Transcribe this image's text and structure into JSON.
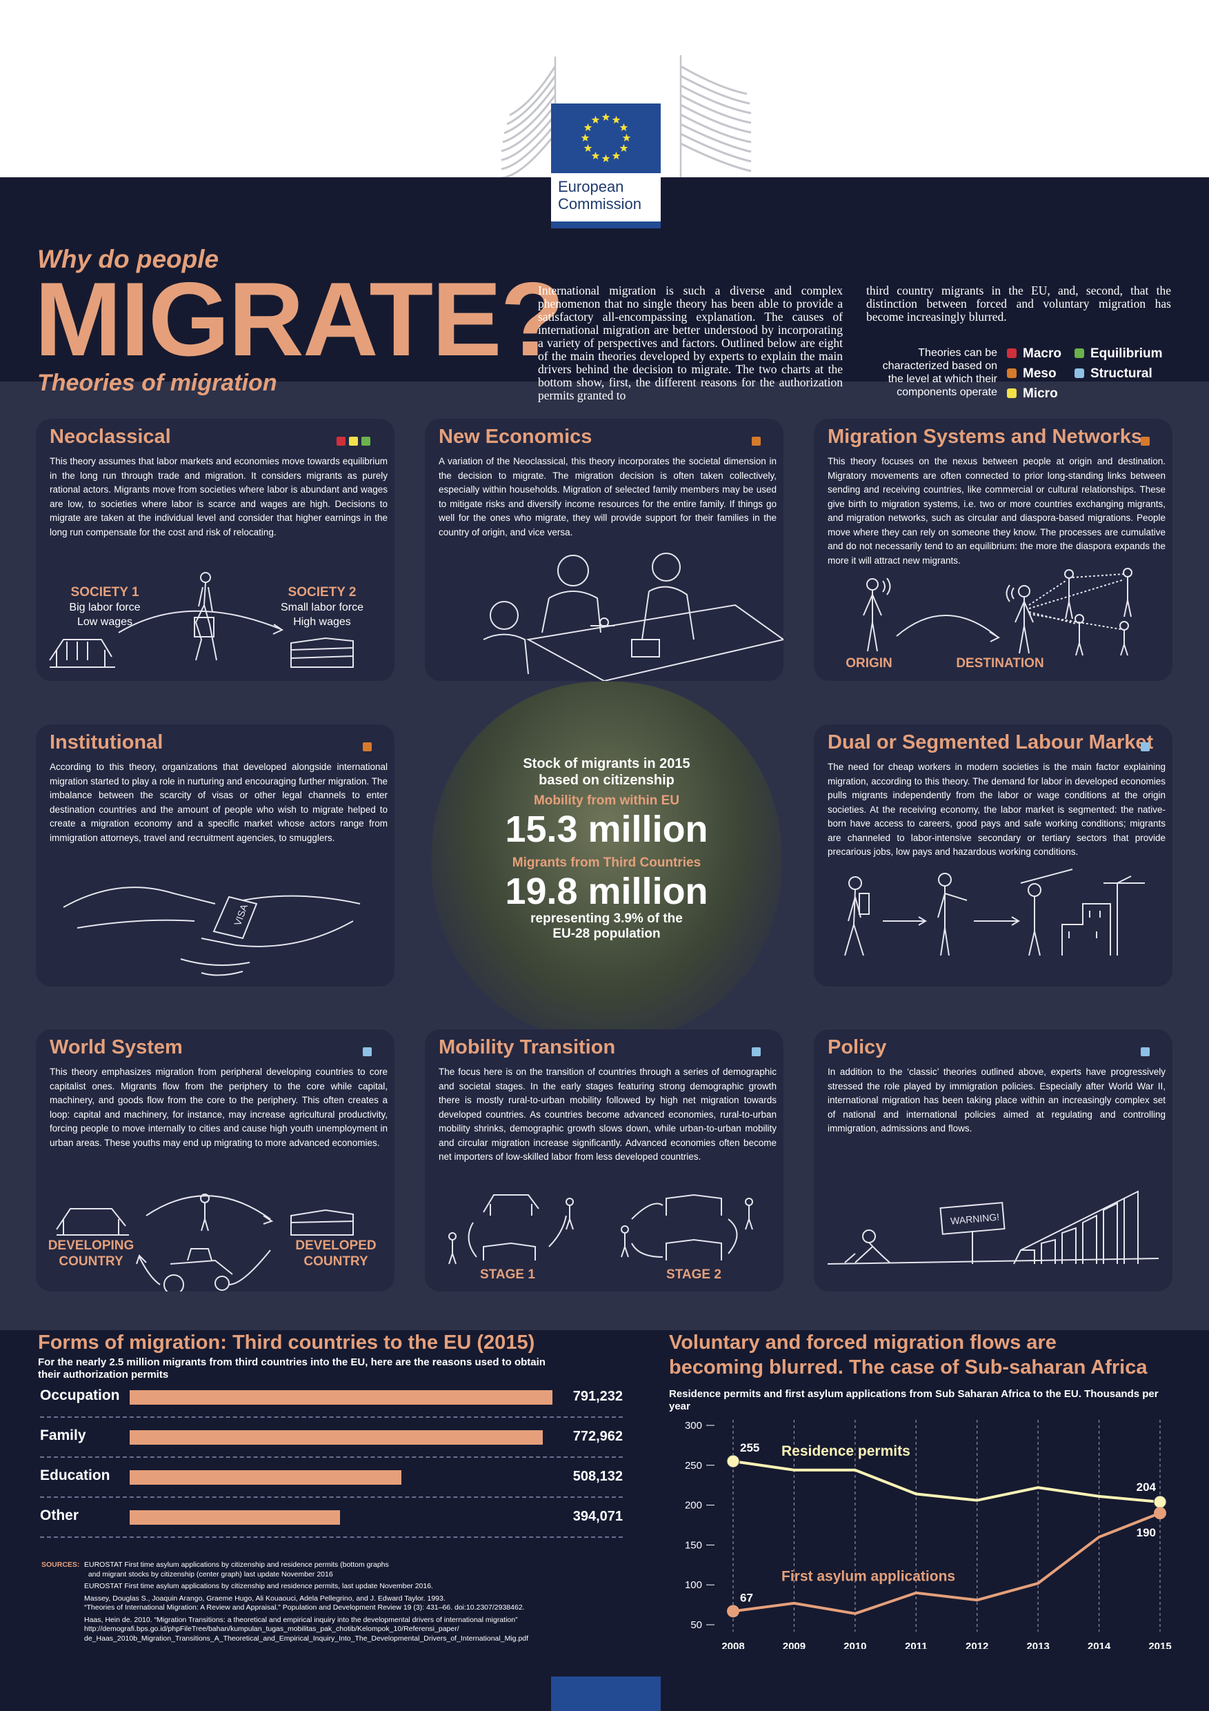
{
  "colors": {
    "accent": "#e5a07b",
    "background": "#161a30",
    "panel": "#242841",
    "macro": "#d0303a",
    "meso": "#d67a2c",
    "micro": "#f2e14a",
    "equilibrium": "#6cb24a",
    "structural": "#8fc1e6",
    "residence": "#fbf4b6"
  },
  "logo": {
    "line1": "European",
    "line2": "Commission"
  },
  "header": {
    "pre": "Why do people",
    "big": "MIGRATE?",
    "sub": "Theories of migration"
  },
  "intro": {
    "col1": "International migration is such a diverse and complex phenomenon that no single theory has been able to provide a satisfactory all-encompassing explanation. The causes of international migration are better understood by incorporating a variety of perspectives and factors. Outlined below are eight of the main theories developed by experts to explain the main drivers behind the decision to migrate. The two charts at the bottom show, first, the different reasons for the authorization permits granted to",
    "col2": "third country migrants in the EU, and, second, that the distinction between forced and voluntary migration has become increasingly blurred."
  },
  "legend": {
    "label": "Theories can be characterized based on the level at which their components operate",
    "items": [
      "Macro",
      "Meso",
      "Micro",
      "Equilibrium",
      "Structural"
    ]
  },
  "cards": {
    "neoclassical": {
      "title": "Neoclassical",
      "text": "This theory assumes that labor markets and economies move towards equilibrium in the long run through trade and migration. It considers migrants as purely rational actors. Migrants move from societies where labor is abundant and wages are low, to societies where labor is scarce and wages are high. Decisions to migrate are taken at the individual level and consider that higher earnings in the long run compensate for the cost and risk of relocating.",
      "s1": "SOCIETY 1",
      "s1a": "Big labor force",
      "s1b": "Low wages",
      "s2": "SOCIETY 2",
      "s2a": "Small labor force",
      "s2b": "High wages"
    },
    "neweconomics": {
      "title": "New Economics",
      "text": "A variation of the Neoclassical, this theory incorporates the societal dimension in the decision to migrate. The migration decision is often taken collectively, especially within households. Migration of selected family members may be used to mitigate risks and diversify income resources for the entire family. If things go well for the ones who migrate, they will provide support for their families in the country of origin, and vice versa."
    },
    "systems": {
      "title": "Migration Systems and Networks",
      "text": "This theory focuses on the nexus between people at origin and destination. Migratory movements are often connected to prior long-standing links between sending and receiving countries, like commercial or cultural relationships. These give birth to migration systems, i.e. two or more countries exchanging migrants, and migration networks, such as circular and diaspora-based migrations. People move where they can rely on someone they know. The processes are cumulative and do not necessarily tend to an equilibrium: the more the diaspora expands the more it will attract new migrants.",
      "origin": "ORIGIN",
      "dest": "DESTINATION"
    },
    "institutional": {
      "title": "Institutional",
      "text": "According to this theory, organizations that developed alongside international migration started to play a role in nurturing and encouraging further migration. The imbalance between the scarcity of visas or other legal channels to enter destination countries and the amount of people who wish to migrate helped to create a migration economy and a specific market whose actors range from immigration attorneys, travel and recruitment agencies, to smugglers.",
      "visa": "VISA"
    },
    "dual": {
      "title": "Dual or Segmented Labour Market",
      "text": "The need for cheap workers in modern societies is the main factor explaining migration, according to this theory. The demand for labor in developed economies pulls migrants independently from the labor or wage conditions at the origin societies. At the receiving economy, the labor market is segmented: the native-born have access to careers, good pays and safe working conditions; migrants are channeled to labor-intensive secondary or tertiary sectors that provide precarious jobs, low pays and hazardous working conditions."
    },
    "world": {
      "title": "World System",
      "text": "This theory emphasizes migration from peripheral developing countries to core capitalist ones. Migrants flow from the periphery to the core while capital, machinery, and goods flow from the core to the periphery. This often creates a loop: capital and machinery, for instance, may increase agricultural productivity, forcing people to move internally to cities and cause high youth unemployment in urban areas. These youths may end up migrating to more advanced economies.",
      "dev1": "DEVELOPING",
      "dev2": "COUNTRY",
      "dvd1": "DEVELOPED",
      "dvd2": "COUNTRY"
    },
    "mobility": {
      "title": "Mobility Transition",
      "text": "The focus here is on the transition of countries through a series of demographic and societal stages. In the early stages featuring strong demographic growth there is mostly rural-to-urban mobility followed by high net migration towards developed countries. As countries become advanced economies, rural-to-urban mobility shrinks, demographic growth slows down, while urban-to-urban mobility and circular migration increase significantly. Advanced economies often become net importers of low-skilled labor from less developed countries.",
      "stage1": "STAGE 1",
      "stage2": "STAGE 2"
    },
    "policy": {
      "title": "Policy",
      "text": "In addition to the ‘classic’ theories outlined above, experts have progressively stressed the role played by immigration policies. Especially after World War II, international migration has been taking place within an increasingly complex set of national and international policies aimed at regulating and controlling immigration, admissions and flows.",
      "warning": "WARNING!"
    }
  },
  "center": {
    "title1": "Stock of migrants in 2015",
    "title2": "based on citizenship",
    "eu_label": "Mobility from within EU",
    "eu_value": "15.3 million",
    "tc_label": "Migrants from Third Countries",
    "tc_value": "19.8 million",
    "note1": "representing 3.9% of the",
    "note2": "EU-28 population"
  },
  "forms": {
    "title": "Forms of migration: Third countries to the EU (2015)",
    "subtitle": "For the nearly 2.5 million migrants from third countries into the EU, here are the reasons used to obtain their authorization permits"
  },
  "flows": {
    "title1": "Voluntary and forced migration flows are",
    "title2": "becoming blurred. The case of Sub-saharan Africa",
    "subtitle": "Residence permits and first asylum applications from Sub Saharan Africa to the EU. Thousands per year"
  },
  "sources": {
    "label": "SOURCES:",
    "l1": "EUROSTAT First time asylum applications by citizenship and residence permits (bottom graphs",
    "l2": "and migrant stocks by citizenship (center graph) last update November 2016",
    "l3": "EUROSTAT First time asylum applications by citizenship and residence permits, last update November 2016.",
    "l4": "Massey, Douglas S., Joaquin Arango, Graeme Hugo, Ali Kouaouci, Adela Pellegrino, and J. Edward Taylor. 1993.",
    "l5": "“Theories of International Migration: A Review and Appraisal.” Population and Development Review 19 (3): 431–66. doi:10.2307/2938462.",
    "l6": "Haas, Hein de. 2010. “Migration Transitions: a theoretical and empirical inquiry into the developmental drivers of international migration”",
    "l7": "http://demografi.bps.go.id/phpFileTree/bahan/kumpulan_tugas_mobilitas_pak_chotib/Kelompok_10/Referensi_paper/",
    "l8": "de_Haas_2010b_Migration_Transitions_A_Theoretical_and_Empirical_Inquiry_Into_The_Developmental_Drivers_of_International_Mig.pdf"
  },
  "chart_data": [
    {
      "type": "bar",
      "orientation": "horizontal",
      "title": "Forms of migration: Third countries to the EU (2015)",
      "categories": [
        "Occupation",
        "Family",
        "Education",
        "Other"
      ],
      "values": [
        791232,
        772962,
        508132,
        394071
      ],
      "labels": [
        "791,232",
        "772,962",
        "508,132",
        "394,071"
      ],
      "xlim": [
        0,
        800000
      ]
    },
    {
      "type": "line",
      "title": "Voluntary and forced migration flows are becoming blurred. The case of Sub-saharan Africa",
      "x": [
        2008,
        2009,
        2010,
        2011,
        2012,
        2013,
        2014,
        2015
      ],
      "xticks": [
        "2008",
        "2009",
        "2010",
        "2011",
        "2012",
        "2013",
        "2014",
        "2015"
      ],
      "yticks": [
        "300",
        "250",
        "200",
        "150",
        "100",
        "50"
      ],
      "ylim": [
        50,
        300
      ],
      "grid": "x-dashed",
      "series": [
        {
          "name": "Residence permits",
          "values": [
            255,
            244,
            244,
            214,
            206,
            222,
            211,
            204
          ],
          "color": "#fbf4b6",
          "start_label": "255",
          "end_label": "204"
        },
        {
          "name": "First asylum applications",
          "values": [
            67,
            77,
            64,
            90,
            81,
            102,
            160,
            190
          ],
          "color": "#e5a07b",
          "start_label": "67",
          "end_label": "190"
        }
      ]
    }
  ]
}
